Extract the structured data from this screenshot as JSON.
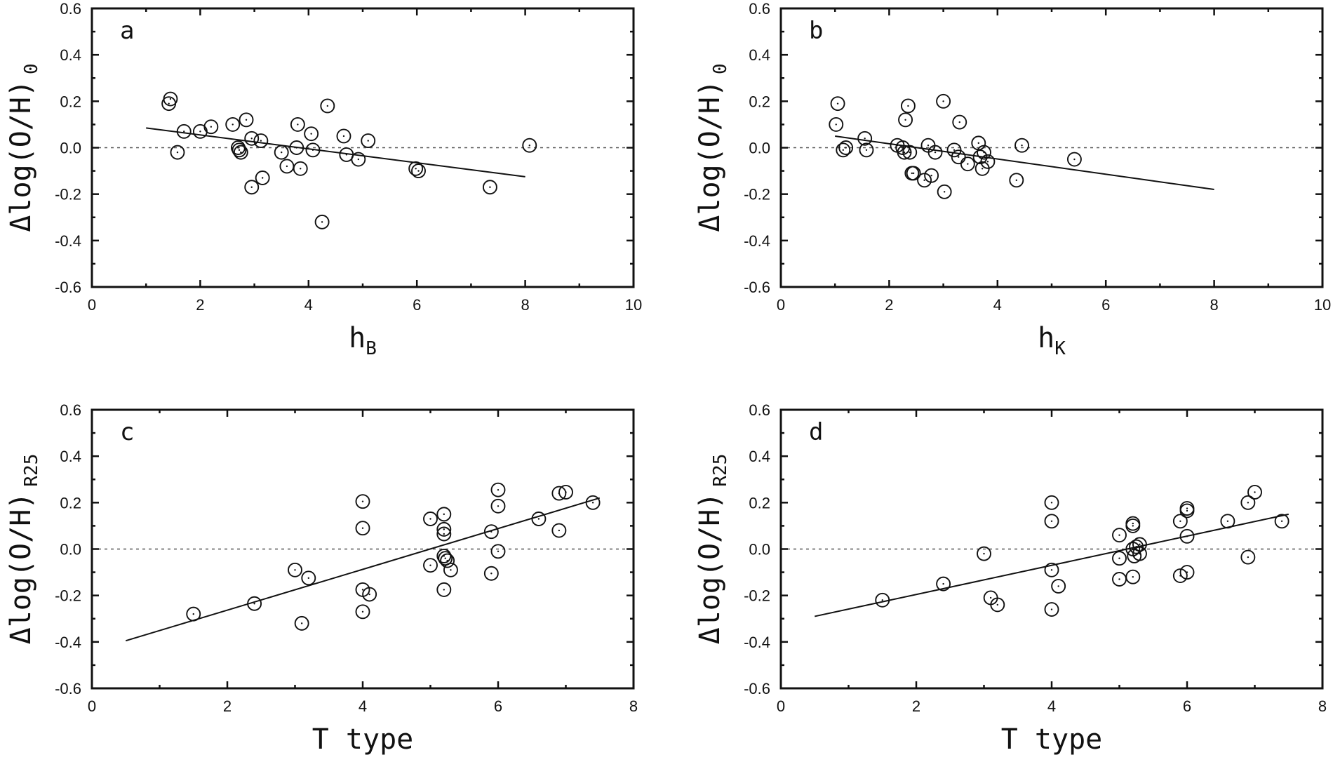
{
  "chart_data": [
    {
      "panel": "a",
      "type": "scatter",
      "xlabel": "h",
      "xlabel_sub": "B",
      "ylabel": "Δlog(O/H)",
      "ylabel_sub": "0",
      "xlim": [
        0,
        10
      ],
      "ylim": [
        -0.6,
        0.6
      ],
      "xticks": [
        0,
        2,
        4,
        6,
        8,
        10
      ],
      "xtick_labels": [
        "0",
        "2",
        "4",
        "6",
        "8",
        "10"
      ],
      "yticks": [
        -0.6,
        -0.4,
        -0.2,
        0.0,
        0.2,
        0.4,
        0.6
      ],
      "ytick_labels": [
        "-0.6",
        "-0.4",
        "-0.2",
        "0.0",
        "0.2",
        "0.4",
        "0.6"
      ],
      "reference_line": {
        "y": 0,
        "style": "dotted"
      },
      "fit_line": {
        "x": [
          1.0,
          8.0
        ],
        "y": [
          0.085,
          -0.125
        ]
      },
      "points": [
        [
          1.42,
          0.19
        ],
        [
          1.45,
          0.21
        ],
        [
          1.58,
          -0.02
        ],
        [
          1.7,
          0.07
        ],
        [
          2.0,
          0.07
        ],
        [
          2.2,
          0.09
        ],
        [
          2.6,
          0.1
        ],
        [
          2.7,
          0.0
        ],
        [
          2.72,
          -0.01
        ],
        [
          2.75,
          -0.02
        ],
        [
          2.85,
          0.12
        ],
        [
          2.95,
          0.04
        ],
        [
          2.95,
          -0.17
        ],
        [
          3.12,
          0.03
        ],
        [
          3.15,
          -0.13
        ],
        [
          3.5,
          -0.02
        ],
        [
          3.6,
          -0.08
        ],
        [
          3.78,
          0.0
        ],
        [
          3.8,
          0.1
        ],
        [
          3.85,
          -0.09
        ],
        [
          4.05,
          0.06
        ],
        [
          4.08,
          -0.01
        ],
        [
          4.25,
          -0.32
        ],
        [
          4.35,
          0.18
        ],
        [
          4.65,
          0.05
        ],
        [
          4.7,
          -0.03
        ],
        [
          4.92,
          -0.05
        ],
        [
          5.1,
          0.03
        ],
        [
          5.98,
          -0.09
        ],
        [
          6.03,
          -0.1
        ],
        [
          7.35,
          -0.17
        ],
        [
          8.08,
          0.01
        ]
      ]
    },
    {
      "panel": "b",
      "type": "scatter",
      "xlabel": "h",
      "xlabel_sub": "K",
      "ylabel": "Δlog(O/H)",
      "ylabel_sub": "0",
      "xlim": [
        0,
        10
      ],
      "ylim": [
        -0.6,
        0.6
      ],
      "xticks": [
        0,
        2,
        4,
        6,
        8,
        10
      ],
      "xtick_labels": [
        "0",
        "2",
        "4",
        "6",
        "8",
        "10"
      ],
      "yticks": [
        -0.6,
        -0.4,
        -0.2,
        0.0,
        0.2,
        0.4,
        0.6
      ],
      "ytick_labels": [
        "-0.6",
        "-0.4",
        "-0.2",
        "0.0",
        "0.2",
        "0.4",
        "0.6"
      ],
      "reference_line": {
        "y": 0,
        "style": "dotted"
      },
      "fit_line": {
        "x": [
          1.0,
          8.0
        ],
        "y": [
          0.05,
          -0.18
        ]
      },
      "points": [
        [
          1.02,
          0.1
        ],
        [
          1.05,
          0.19
        ],
        [
          1.15,
          -0.01
        ],
        [
          1.2,
          0.0
        ],
        [
          1.55,
          0.04
        ],
        [
          1.58,
          -0.01
        ],
        [
          2.15,
          0.01
        ],
        [
          2.25,
          0.0
        ],
        [
          2.28,
          -0.02
        ],
        [
          2.3,
          0.12
        ],
        [
          2.35,
          0.18
        ],
        [
          2.38,
          -0.02
        ],
        [
          2.42,
          -0.11
        ],
        [
          2.45,
          -0.11
        ],
        [
          2.65,
          -0.14
        ],
        [
          2.72,
          0.01
        ],
        [
          2.78,
          -0.12
        ],
        [
          2.85,
          -0.02
        ],
        [
          3.0,
          0.2
        ],
        [
          3.02,
          -0.19
        ],
        [
          3.2,
          -0.01
        ],
        [
          3.28,
          -0.04
        ],
        [
          3.3,
          0.11
        ],
        [
          3.45,
          -0.07
        ],
        [
          3.65,
          0.02
        ],
        [
          3.68,
          -0.04
        ],
        [
          3.72,
          -0.09
        ],
        [
          3.75,
          -0.02
        ],
        [
          3.82,
          -0.06
        ],
        [
          4.35,
          -0.14
        ],
        [
          4.45,
          0.01
        ],
        [
          5.42,
          -0.05
        ]
      ]
    },
    {
      "panel": "c",
      "type": "scatter",
      "xlabel": "T type",
      "ylabel": "Δlog(O/H)",
      "ylabel_sub": "R25",
      "xlim": [
        0,
        8
      ],
      "ylim": [
        -0.6,
        0.6
      ],
      "xticks": [
        0,
        2,
        4,
        6,
        8
      ],
      "xtick_labels": [
        "0",
        "2",
        "4",
        "6",
        "8"
      ],
      "yticks": [
        -0.6,
        -0.4,
        -0.2,
        0.0,
        0.2,
        0.4,
        0.6
      ],
      "ytick_labels": [
        "-0.6",
        "-0.4",
        "-0.2",
        "0.0",
        "0.2",
        "0.4",
        "0.6"
      ],
      "reference_line": {
        "y": 0,
        "style": "dotted"
      },
      "fit_line": {
        "x": [
          0.5,
          7.5
        ],
        "y": [
          -0.395,
          0.22
        ]
      },
      "points": [
        [
          1.5,
          -0.28
        ],
        [
          2.4,
          -0.235
        ],
        [
          3.0,
          -0.09
        ],
        [
          3.1,
          -0.32
        ],
        [
          3.2,
          -0.125
        ],
        [
          4.0,
          0.205
        ],
        [
          4.0,
          0.09
        ],
        [
          4.0,
          -0.175
        ],
        [
          4.0,
          -0.27
        ],
        [
          4.1,
          -0.195
        ],
        [
          5.0,
          0.13
        ],
        [
          5.0,
          -0.07
        ],
        [
          5.2,
          0.15
        ],
        [
          5.2,
          0.085
        ],
        [
          5.2,
          0.065
        ],
        [
          5.2,
          -0.03
        ],
        [
          5.22,
          -0.04
        ],
        [
          5.2,
          -0.175
        ],
        [
          5.25,
          -0.05
        ],
        [
          5.3,
          -0.09
        ],
        [
          5.9,
          0.075
        ],
        [
          5.9,
          -0.105
        ],
        [
          6.0,
          0.255
        ],
        [
          6.0,
          0.185
        ],
        [
          6.0,
          -0.01
        ],
        [
          6.6,
          0.13
        ],
        [
          6.9,
          0.24
        ],
        [
          6.9,
          0.08
        ],
        [
          7.0,
          0.245
        ],
        [
          7.4,
          0.2
        ]
      ]
    },
    {
      "panel": "d",
      "type": "scatter",
      "xlabel": "T type",
      "ylabel": "Δlog(O/H)",
      "ylabel_sub": "R25",
      "xlim": [
        0,
        8
      ],
      "ylim": [
        -0.6,
        0.6
      ],
      "xticks": [
        0,
        2,
        4,
        6,
        8
      ],
      "xtick_labels": [
        "0",
        "2",
        "4",
        "6",
        "8"
      ],
      "yticks": [
        -0.6,
        -0.4,
        -0.2,
        0.0,
        0.2,
        0.4,
        0.6
      ],
      "ytick_labels": [
        "-0.6",
        "-0.4",
        "-0.2",
        "0.0",
        "0.2",
        "0.4",
        "0.6"
      ],
      "reference_line": {
        "y": 0,
        "style": "dotted"
      },
      "fit_line": {
        "x": [
          0.5,
          7.5
        ],
        "y": [
          -0.29,
          0.15
        ]
      },
      "points": [
        [
          1.5,
          -0.22
        ],
        [
          2.4,
          -0.15
        ],
        [
          3.0,
          -0.02
        ],
        [
          3.1,
          -0.21
        ],
        [
          3.2,
          -0.24
        ],
        [
          4.0,
          0.2
        ],
        [
          4.0,
          0.12
        ],
        [
          4.0,
          -0.09
        ],
        [
          4.0,
          -0.26
        ],
        [
          4.1,
          -0.16
        ],
        [
          5.0,
          0.06
        ],
        [
          5.0,
          -0.04
        ],
        [
          5.0,
          -0.13
        ],
        [
          5.2,
          0.11
        ],
        [
          5.2,
          0.1
        ],
        [
          5.2,
          0.0
        ],
        [
          5.22,
          -0.03
        ],
        [
          5.2,
          -0.12
        ],
        [
          5.25,
          0.01
        ],
        [
          5.3,
          0.02
        ],
        [
          5.3,
          -0.02
        ],
        [
          5.9,
          0.12
        ],
        [
          5.9,
          -0.115
        ],
        [
          6.0,
          0.175
        ],
        [
          6.0,
          0.165
        ],
        [
          6.0,
          0.055
        ],
        [
          6.0,
          -0.1
        ],
        [
          6.6,
          0.12
        ],
        [
          6.9,
          0.2
        ],
        [
          6.9,
          -0.035
        ],
        [
          7.0,
          0.245
        ],
        [
          7.4,
          0.12
        ]
      ]
    }
  ]
}
